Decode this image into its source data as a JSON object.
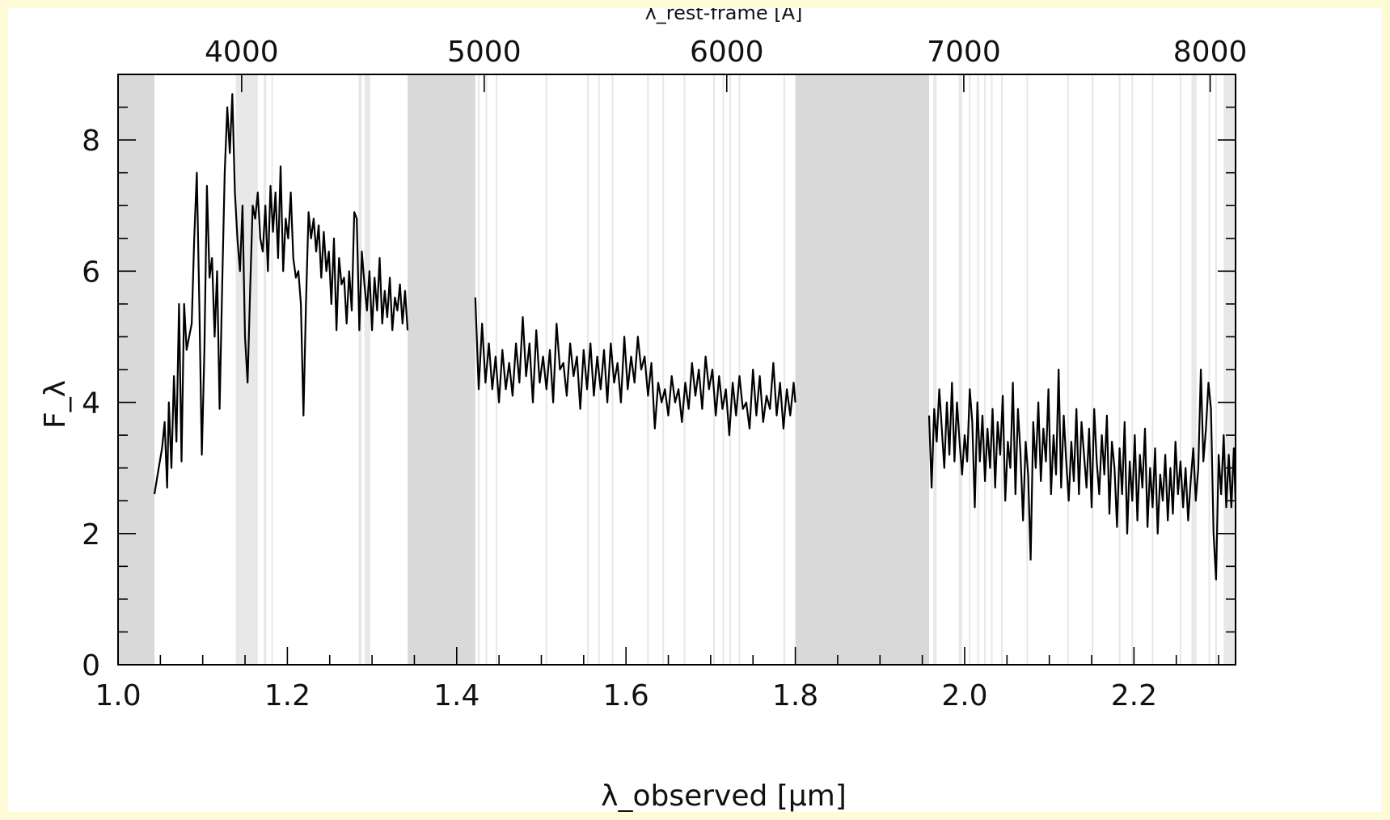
{
  "chart_data": {
    "type": "line",
    "xlabel": "λ_observed [μm]",
    "ylabel": "F_λ",
    "top_axis_label": "λ_rest-frame [Å]",
    "xlim": [
      1.0,
      2.32
    ],
    "ylim": [
      0,
      9
    ],
    "x_ticks": [
      "1.0",
      "1.2",
      "1.4",
      "1.6",
      "1.8",
      "2.0",
      "2.2"
    ],
    "x_tick_values": [
      1.0,
      1.2,
      1.4,
      1.6,
      1.8,
      2.0,
      2.2
    ],
    "y_ticks": [
      "0",
      "2",
      "4",
      "6",
      "8"
    ],
    "y_tick_values": [
      0,
      2,
      4,
      6,
      8
    ],
    "top_ticks": [
      "4000",
      "5000",
      "6000",
      "7000",
      "8000"
    ],
    "top_tick_obs_values": [
      1.146,
      1.4325,
      1.719,
      1.999,
      2.29
    ],
    "series_color": "#000000",
    "band_color": "#d9d9d9",
    "light_band_color": "#e8e8e8",
    "gap_bands": [
      [
        1.0,
        1.043
      ],
      [
        1.342,
        1.422
      ],
      [
        1.8,
        1.958
      ]
    ],
    "sky_bands": [
      [
        1.139,
        1.165
      ],
      [
        1.172,
        1.175
      ],
      [
        1.181,
        1.183
      ],
      [
        1.284,
        1.288
      ],
      [
        1.291,
        1.298
      ],
      [
        1.425,
        1.427
      ],
      [
        1.434,
        1.436
      ],
      [
        1.446,
        1.448
      ],
      [
        1.505,
        1.507
      ],
      [
        1.554,
        1.556
      ],
      [
        1.567,
        1.569
      ],
      [
        1.583,
        1.585
      ],
      [
        1.625,
        1.627
      ],
      [
        1.643,
        1.645
      ],
      [
        1.668,
        1.67
      ],
      [
        1.703,
        1.705
      ],
      [
        1.714,
        1.716
      ],
      [
        1.722,
        1.724
      ],
      [
        1.733,
        1.735
      ],
      [
        1.786,
        1.788
      ],
      [
        1.963,
        1.967
      ],
      [
        1.993,
        1.997
      ],
      [
        2.005,
        2.007
      ],
      [
        2.015,
        2.017
      ],
      [
        2.023,
        2.025
      ],
      [
        2.031,
        2.033
      ],
      [
        2.043,
        2.045
      ],
      [
        2.073,
        2.075
      ],
      [
        2.121,
        2.123
      ],
      [
        2.15,
        2.152
      ],
      [
        2.182,
        2.184
      ],
      [
        2.197,
        2.199
      ],
      [
        2.221,
        2.223
      ],
      [
        2.254,
        2.256
      ],
      [
        2.268,
        2.274
      ],
      [
        2.288,
        2.29
      ],
      [
        2.296,
        2.298
      ],
      [
        2.306,
        2.32
      ]
    ],
    "segments": [
      {
        "x": [
          1.043,
          1.048,
          1.052,
          1.055,
          1.058,
          1.06,
          1.063,
          1.066,
          1.069,
          1.072,
          1.075,
          1.078,
          1.081,
          1.084,
          1.087,
          1.09,
          1.093,
          1.096,
          1.099,
          1.102,
          1.105,
          1.108,
          1.111,
          1.114,
          1.117,
          1.12,
          1.123,
          1.126,
          1.129,
          1.132,
          1.135,
          1.138,
          1.141,
          1.144,
          1.147,
          1.15,
          1.153,
          1.156,
          1.159,
          1.162,
          1.165,
          1.168,
          1.171,
          1.174,
          1.177,
          1.18,
          1.183,
          1.186,
          1.189,
          1.192,
          1.195,
          1.198,
          1.201,
          1.204,
          1.207,
          1.21,
          1.213,
          1.216,
          1.219,
          1.222,
          1.225,
          1.228,
          1.231,
          1.234,
          1.237,
          1.24,
          1.243,
          1.246,
          1.249,
          1.252,
          1.255,
          1.258,
          1.261,
          1.264,
          1.267,
          1.27,
          1.273,
          1.276,
          1.279,
          1.282,
          1.285,
          1.288,
          1.291,
          1.294,
          1.297,
          1.3,
          1.303,
          1.306,
          1.309,
          1.312,
          1.315,
          1.318,
          1.321,
          1.324,
          1.327,
          1.33,
          1.333,
          1.336,
          1.339,
          1.342
        ],
        "y": [
          2.6,
          3.0,
          3.3,
          3.7,
          2.7,
          4.0,
          3.0,
          4.4,
          3.4,
          5.5,
          3.1,
          5.5,
          4.8,
          5.0,
          5.2,
          6.5,
          7.5,
          5.5,
          3.2,
          4.8,
          7.3,
          5.9,
          6.2,
          5.0,
          6.0,
          3.9,
          5.8,
          7.5,
          8.5,
          7.8,
          8.7,
          7.2,
          6.5,
          6.0,
          7.0,
          5.0,
          4.3,
          5.7,
          7.0,
          6.8,
          7.2,
          6.5,
          6.3,
          7.0,
          6.0,
          7.3,
          6.6,
          7.2,
          6.2,
          7.6,
          6.0,
          6.8,
          6.5,
          7.2,
          6.2,
          5.9,
          6.0,
          5.5,
          3.8,
          5.5,
          6.9,
          6.5,
          6.8,
          6.3,
          6.7,
          5.9,
          6.6,
          6.0,
          6.3,
          5.5,
          6.5,
          5.1,
          6.2,
          5.8,
          5.9,
          5.2,
          6.0,
          5.4,
          6.9,
          6.8,
          5.1,
          6.3,
          5.8,
          5.4,
          6.0,
          5.1,
          5.9,
          5.4,
          6.2,
          5.2,
          5.7,
          5.3,
          5.9,
          5.1,
          5.6,
          5.4,
          5.8,
          5.2,
          5.7,
          5.1
        ]
      },
      {
        "x": [
          1.422,
          1.426,
          1.43,
          1.434,
          1.438,
          1.442,
          1.446,
          1.45,
          1.454,
          1.458,
          1.462,
          1.466,
          1.47,
          1.474,
          1.478,
          1.482,
          1.486,
          1.49,
          1.494,
          1.498,
          1.502,
          1.506,
          1.51,
          1.514,
          1.518,
          1.522,
          1.526,
          1.53,
          1.534,
          1.538,
          1.542,
          1.546,
          1.55,
          1.554,
          1.558,
          1.562,
          1.566,
          1.57,
          1.574,
          1.578,
          1.582,
          1.586,
          1.59,
          1.594,
          1.598,
          1.602,
          1.606,
          1.61,
          1.614,
          1.618,
          1.622,
          1.626,
          1.63,
          1.634,
          1.638,
          1.642,
          1.646,
          1.65,
          1.654,
          1.658,
          1.662,
          1.666,
          1.67,
          1.674,
          1.678,
          1.682,
          1.686,
          1.69,
          1.694,
          1.698,
          1.702,
          1.706,
          1.71,
          1.714,
          1.718,
          1.722,
          1.726,
          1.73,
          1.734,
          1.738,
          1.742,
          1.746,
          1.75,
          1.754,
          1.758,
          1.762,
          1.766,
          1.77,
          1.774,
          1.778,
          1.782,
          1.786,
          1.79,
          1.794,
          1.798,
          1.8
        ],
        "y": [
          5.6,
          4.2,
          5.2,
          4.3,
          4.9,
          4.2,
          4.7,
          4.0,
          4.8,
          4.2,
          4.6,
          4.1,
          4.9,
          4.3,
          5.3,
          4.4,
          4.9,
          4.0,
          5.1,
          4.3,
          4.7,
          4.2,
          4.8,
          4.0,
          5.2,
          4.5,
          4.6,
          4.1,
          4.9,
          4.4,
          4.7,
          3.9,
          4.8,
          4.2,
          4.9,
          4.1,
          4.7,
          4.2,
          4.8,
          4.0,
          4.9,
          4.3,
          4.6,
          4.0,
          5.0,
          4.2,
          4.7,
          4.3,
          5.0,
          4.5,
          4.7,
          4.1,
          4.6,
          3.6,
          4.3,
          4.0,
          4.2,
          3.8,
          4.4,
          4.0,
          4.2,
          3.7,
          4.3,
          3.9,
          4.6,
          4.1,
          4.5,
          3.9,
          4.7,
          4.2,
          4.5,
          3.8,
          4.4,
          3.9,
          4.2,
          3.5,
          4.3,
          3.8,
          4.4,
          3.9,
          4.0,
          3.6,
          4.5,
          3.8,
          4.4,
          3.7,
          4.1,
          3.9,
          4.6,
          3.8,
          4.3,
          3.6,
          4.2,
          3.8,
          4.3,
          4.0
        ]
      },
      {
        "x": [
          1.958,
          1.961,
          1.964,
          1.967,
          1.97,
          1.973,
          1.976,
          1.979,
          1.982,
          1.985,
          1.988,
          1.991,
          1.994,
          1.997,
          2.0,
          2.003,
          2.006,
          2.009,
          2.012,
          2.015,
          2.018,
          2.021,
          2.024,
          2.027,
          2.03,
          2.033,
          2.036,
          2.039,
          2.042,
          2.045,
          2.048,
          2.051,
          2.054,
          2.057,
          2.06,
          2.063,
          2.066,
          2.069,
          2.072,
          2.075,
          2.078,
          2.081,
          2.084,
          2.087,
          2.09,
          2.093,
          2.096,
          2.099,
          2.102,
          2.105,
          2.108,
          2.111,
          2.114,
          2.117,
          2.12,
          2.123,
          2.126,
          2.129,
          2.132,
          2.135,
          2.138,
          2.141,
          2.144,
          2.147,
          2.15,
          2.153,
          2.156,
          2.159,
          2.162,
          2.165,
          2.168,
          2.171,
          2.174,
          2.177,
          2.18,
          2.183,
          2.186,
          2.189,
          2.192,
          2.195,
          2.198,
          2.201,
          2.204,
          2.207,
          2.21,
          2.213,
          2.216,
          2.219,
          2.222,
          2.225,
          2.228,
          2.231,
          2.234,
          2.237,
          2.24,
          2.243,
          2.246,
          2.249,
          2.252,
          2.255,
          2.258,
          2.261,
          2.264,
          2.267,
          2.27,
          2.273,
          2.276,
          2.279,
          2.282,
          2.285,
          2.288,
          2.291,
          2.294,
          2.297,
          2.3,
          2.303,
          2.306,
          2.309,
          2.312,
          2.315,
          2.318,
          2.32
        ],
        "y": [
          3.8,
          2.7,
          3.9,
          3.4,
          4.2,
          3.6,
          3.0,
          4.0,
          3.2,
          4.3,
          3.1,
          4.0,
          3.4,
          2.9,
          3.5,
          3.1,
          4.2,
          3.7,
          2.4,
          4.0,
          3.1,
          3.8,
          2.8,
          3.6,
          3.0,
          3.9,
          2.7,
          3.7,
          3.2,
          4.1,
          2.5,
          3.4,
          3.0,
          4.3,
          2.6,
          3.9,
          3.2,
          2.2,
          3.4,
          2.9,
          1.6,
          3.7,
          3.0,
          4.0,
          2.8,
          3.6,
          3.1,
          4.2,
          2.6,
          3.5,
          2.9,
          4.5,
          2.7,
          3.8,
          3.1,
          2.5,
          3.4,
          2.8,
          3.9,
          2.6,
          3.7,
          3.2,
          2.7,
          3.6,
          2.4,
          3.9,
          3.1,
          2.6,
          3.5,
          2.9,
          3.8,
          2.3,
          3.4,
          3.0,
          2.1,
          3.3,
          2.6,
          3.7,
          2.0,
          3.1,
          2.5,
          3.5,
          2.2,
          3.2,
          2.7,
          3.6,
          2.1,
          3.0,
          2.4,
          3.3,
          2.0,
          2.9,
          2.5,
          3.2,
          2.2,
          3.0,
          2.3,
          3.4,
          2.6,
          3.1,
          2.4,
          3.0,
          2.2,
          2.8,
          3.3,
          2.5,
          3.0,
          4.5,
          3.1,
          3.6,
          4.3,
          3.9,
          2.0,
          1.3,
          3.2,
          2.6,
          3.5,
          2.4,
          3.2,
          2.4,
          3.3,
          2.5
        ]
      }
    ]
  }
}
